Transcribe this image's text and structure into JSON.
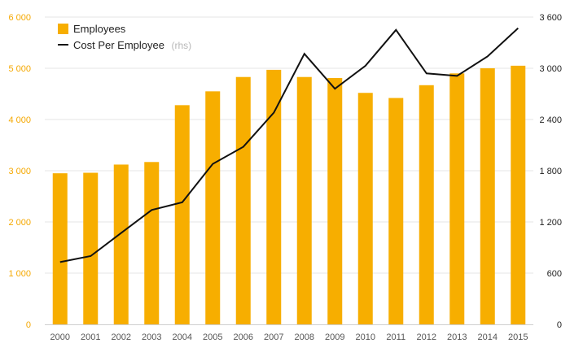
{
  "chart_data": {
    "type": "bar",
    "categories": [
      "2000",
      "2001",
      "2002",
      "2003",
      "2004",
      "2005",
      "2006",
      "2007",
      "2008",
      "2009",
      "2010",
      "2011",
      "2012",
      "2013",
      "2014",
      "2015"
    ],
    "series": [
      {
        "name": "Employees",
        "type": "bar",
        "axis": "left",
        "color": "#f7ae00",
        "values": [
          2950,
          2960,
          3120,
          3170,
          4280,
          4550,
          4830,
          4970,
          4830,
          4810,
          4520,
          4420,
          4670,
          4900,
          5000,
          5050
        ]
      },
      {
        "name": "Cost Per Employee",
        "type": "line",
        "axis": "right",
        "color": "#111111",
        "values": [
          730,
          800,
          1070,
          1340,
          1430,
          1880,
          2080,
          2480,
          3170,
          2760,
          3030,
          3450,
          2940,
          2910,
          3140,
          3470
        ]
      }
    ],
    "y_left": {
      "ticks": [
        "0",
        "1 000",
        "2 000",
        "3 000",
        "4 000",
        "5 000",
        "6 000"
      ],
      "tick_values": [
        0,
        1000,
        2000,
        3000,
        4000,
        5000,
        6000
      ],
      "ylim": [
        0,
        6000
      ],
      "color": "#f5a800"
    },
    "y_right": {
      "ticks": [
        "0",
        "600",
        "1 200",
        "1 800",
        "2 400",
        "3 000",
        "3 600"
      ],
      "tick_values": [
        0,
        600,
        1200,
        1800,
        2400,
        3000,
        3600
      ],
      "ylim": [
        0,
        3600
      ],
      "color": "#222222"
    },
    "legend": {
      "placement": "top-left",
      "suffix_label": "(rhs)"
    },
    "title": "",
    "xlabel": "",
    "ylabel": "",
    "grid": true
  }
}
